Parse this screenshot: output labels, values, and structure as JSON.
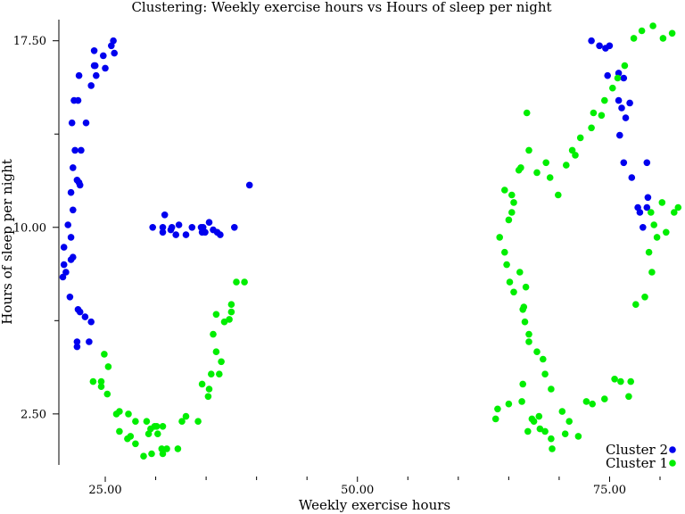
{
  "chart_data": {
    "type": "scatter",
    "title": "Clustering: Weekly exercise hours vs Hours of sleep per night",
    "xlabel": "Weekly exercise hours",
    "ylabel": "Hours of sleep per night",
    "xlim": [
      20.4,
      82.3
    ],
    "ylim": [
      0.45,
      18.35
    ],
    "xticks": [
      25,
      50,
      75
    ],
    "xtick_labels": [
      "25.00",
      "50.00",
      "75.00"
    ],
    "yticks": [
      2.5,
      10,
      17.5
    ],
    "ytick_labels": [
      "2.50",
      "10.00",
      "17.50"
    ],
    "y_minor_ticks": [
      6.25,
      13.75
    ],
    "x_minor_ticks": [
      30,
      35,
      40,
      45,
      55,
      60,
      65,
      70,
      80
    ],
    "legend_position": "bottom-right",
    "series": [
      {
        "name": "Cluster 2",
        "color": "#0000ee",
        "points": [
          [
            20.8,
            8.0
          ],
          [
            20.9,
            8.5
          ],
          [
            21.1,
            8.2
          ],
          [
            20.9,
            9.2
          ],
          [
            21.5,
            7.2
          ],
          [
            21.6,
            8.7
          ],
          [
            21.8,
            8.8
          ],
          [
            21.3,
            10.1
          ],
          [
            21.6,
            9.6
          ],
          [
            21.8,
            10.7
          ],
          [
            21.6,
            11.4
          ],
          [
            21.8,
            12.4
          ],
          [
            22.0,
            13.1
          ],
          [
            22.4,
            11.8
          ],
          [
            22.2,
            11.9
          ],
          [
            22.5,
            11.7
          ],
          [
            22.6,
            13.1
          ],
          [
            21.7,
            14.2
          ],
          [
            21.9,
            15.1
          ],
          [
            22.3,
            15.1
          ],
          [
            22.4,
            16.1
          ],
          [
            23.1,
            14.2
          ],
          [
            23.6,
            15.7
          ],
          [
            23.9,
            16.5
          ],
          [
            24.0,
            16.5
          ],
          [
            24.1,
            16.1
          ],
          [
            23.9,
            17.1
          ],
          [
            24.8,
            16.9
          ],
          [
            25.0,
            16.4
          ],
          [
            25.6,
            17.3
          ],
          [
            25.8,
            17.5
          ],
          [
            25.9,
            17.0
          ],
          [
            22.3,
            6.7
          ],
          [
            22.5,
            6.6
          ],
          [
            23.0,
            6.4
          ],
          [
            23.6,
            6.2
          ],
          [
            22.2,
            5.4
          ],
          [
            22.2,
            5.2
          ],
          [
            23.4,
            5.4
          ],
          [
            29.7,
            10.0
          ],
          [
            30.7,
            10.0
          ],
          [
            30.7,
            9.8
          ],
          [
            30.9,
            10.5
          ],
          [
            31.5,
            9.9
          ],
          [
            31.6,
            10.0
          ],
          [
            32.0,
            9.7
          ],
          [
            32.3,
            10.1
          ],
          [
            33.0,
            9.7
          ],
          [
            33.6,
            10.0
          ],
          [
            34.5,
            10.0
          ],
          [
            34.6,
            9.8
          ],
          [
            34.7,
            10.0
          ],
          [
            34.9,
            9.8
          ],
          [
            35.3,
            10.2
          ],
          [
            35.7,
            9.9
          ],
          [
            36.1,
            9.8
          ],
          [
            36.4,
            9.7
          ],
          [
            37.8,
            10.0
          ],
          [
            39.3,
            11.7
          ],
          [
            73.2,
            17.5
          ],
          [
            74.0,
            17.3
          ],
          [
            74.6,
            17.2
          ],
          [
            75.0,
            17.3
          ],
          [
            74.8,
            16.1
          ],
          [
            75.9,
            16.2
          ],
          [
            76.4,
            16.0
          ],
          [
            77.0,
            15.0
          ],
          [
            75.9,
            15.1
          ],
          [
            76.2,
            14.8
          ],
          [
            76.6,
            14.4
          ],
          [
            76.0,
            13.7
          ],
          [
            76.4,
            12.6
          ],
          [
            77.2,
            12.0
          ],
          [
            77.8,
            10.8
          ],
          [
            78.0,
            10.6
          ],
          [
            78.3,
            10.0
          ],
          [
            78.7,
            10.8
          ],
          [
            78.8,
            11.2
          ],
          [
            78.7,
            12.6
          ]
        ]
      },
      {
        "name": "Cluster 1",
        "color": "#00ee00",
        "points": [
          [
            23.8,
            3.8
          ],
          [
            24.6,
            3.8
          ],
          [
            24.9,
            4.9
          ],
          [
            25.2,
            3.3
          ],
          [
            25.3,
            4.4
          ],
          [
            24.6,
            3.6
          ],
          [
            26.1,
            2.5
          ],
          [
            26.4,
            2.6
          ],
          [
            27.3,
            2.5
          ],
          [
            28.0,
            2.2
          ],
          [
            29.1,
            2.2
          ],
          [
            29.3,
            1.7
          ],
          [
            29.5,
            1.9
          ],
          [
            29.9,
            2.0
          ],
          [
            30.1,
            2.0
          ],
          [
            30.2,
            1.7
          ],
          [
            30.7,
            2.0
          ],
          [
            26.4,
            1.8
          ],
          [
            27.2,
            1.5
          ],
          [
            27.5,
            1.6
          ],
          [
            28.0,
            1.3
          ],
          [
            28.8,
            0.8
          ],
          [
            29.6,
            0.9
          ],
          [
            30.6,
            1.1
          ],
          [
            30.7,
            0.9
          ],
          [
            31.1,
            1.1
          ],
          [
            32.2,
            1.1
          ],
          [
            32.6,
            2.2
          ],
          [
            33.0,
            2.4
          ],
          [
            34.2,
            2.2
          ],
          [
            34.6,
            3.7
          ],
          [
            35.2,
            3.2
          ],
          [
            35.3,
            3.5
          ],
          [
            35.5,
            4.1
          ],
          [
            36.0,
            5.0
          ],
          [
            36.3,
            4.1
          ],
          [
            36.5,
            4.6
          ],
          [
            36.8,
            6.2
          ],
          [
            37.3,
            6.3
          ],
          [
            37.5,
            6.6
          ],
          [
            37.5,
            6.9
          ],
          [
            38.0,
            7.8
          ],
          [
            38.8,
            7.8
          ],
          [
            35.7,
            5.7
          ],
          [
            36.0,
            6.5
          ],
          [
            63.7,
            2.3
          ],
          [
            63.9,
            2.7
          ],
          [
            65.0,
            2.9
          ],
          [
            66.3,
            3.0
          ],
          [
            66.4,
            3.7
          ],
          [
            68.0,
            2.4
          ],
          [
            67.3,
            2.3
          ],
          [
            67.5,
            2.2
          ],
          [
            66.9,
            1.8
          ],
          [
            68.1,
            1.9
          ],
          [
            68.6,
            1.8
          ],
          [
            69.2,
            1.5
          ],
          [
            69.3,
            1.1
          ],
          [
            70.6,
            1.7
          ],
          [
            71.0,
            2.2
          ],
          [
            71.9,
            1.6
          ],
          [
            70.3,
            2.6
          ],
          [
            72.7,
            3.0
          ],
          [
            73.3,
            2.9
          ],
          [
            74.5,
            3.1
          ],
          [
            75.5,
            3.9
          ],
          [
            76.1,
            3.8
          ],
          [
            76.9,
            3.2
          ],
          [
            77.1,
            3.8
          ],
          [
            77.6,
            6.9
          ],
          [
            78.5,
            7.2
          ],
          [
            78.9,
            9.0
          ],
          [
            79.2,
            8.2
          ],
          [
            79.7,
            9.6
          ],
          [
            79.4,
            10.1
          ],
          [
            79.1,
            10.6
          ],
          [
            80.2,
            11.0
          ],
          [
            81.8,
            10.8
          ],
          [
            81.4,
            10.6
          ],
          [
            80.6,
            9.8
          ],
          [
            64.6,
            11.5
          ],
          [
            65.3,
            11.3
          ],
          [
            65.5,
            11.0
          ],
          [
            65.3,
            10.6
          ],
          [
            65.0,
            10.3
          ],
          [
            64.1,
            9.6
          ],
          [
            64.6,
            9.0
          ],
          [
            64.8,
            8.5
          ],
          [
            65.1,
            7.8
          ],
          [
            65.5,
            7.4
          ],
          [
            66.4,
            6.7
          ],
          [
            66.5,
            6.8
          ],
          [
            66.6,
            6.2
          ],
          [
            67.0,
            5.7
          ],
          [
            67.0,
            5.4
          ],
          [
            67.8,
            5.0
          ],
          [
            68.4,
            4.7
          ],
          [
            68.6,
            4.1
          ],
          [
            69.2,
            3.5
          ],
          [
            66.0,
            12.3
          ],
          [
            66.2,
            12.4
          ],
          [
            67.0,
            13.1
          ],
          [
            67.8,
            12.2
          ],
          [
            68.7,
            12.6
          ],
          [
            69.1,
            12.0
          ],
          [
            69.9,
            11.3
          ],
          [
            70.7,
            12.5
          ],
          [
            71.3,
            13.1
          ],
          [
            71.6,
            12.9
          ],
          [
            72.1,
            13.6
          ],
          [
            73.2,
            14.0
          ],
          [
            73.4,
            14.6
          ],
          [
            74.2,
            14.5
          ],
          [
            74.5,
            15.1
          ],
          [
            75.3,
            15.6
          ],
          [
            75.8,
            16.0
          ],
          [
            76.5,
            16.5
          ],
          [
            77.4,
            17.6
          ],
          [
            78.2,
            17.9
          ],
          [
            79.3,
            18.1
          ],
          [
            80.3,
            17.6
          ],
          [
            81.2,
            17.8
          ],
          [
            66.8,
            14.6
          ],
          [
            66.1,
            8.2
          ],
          [
            66.7,
            7.6
          ]
        ]
      }
    ]
  }
}
